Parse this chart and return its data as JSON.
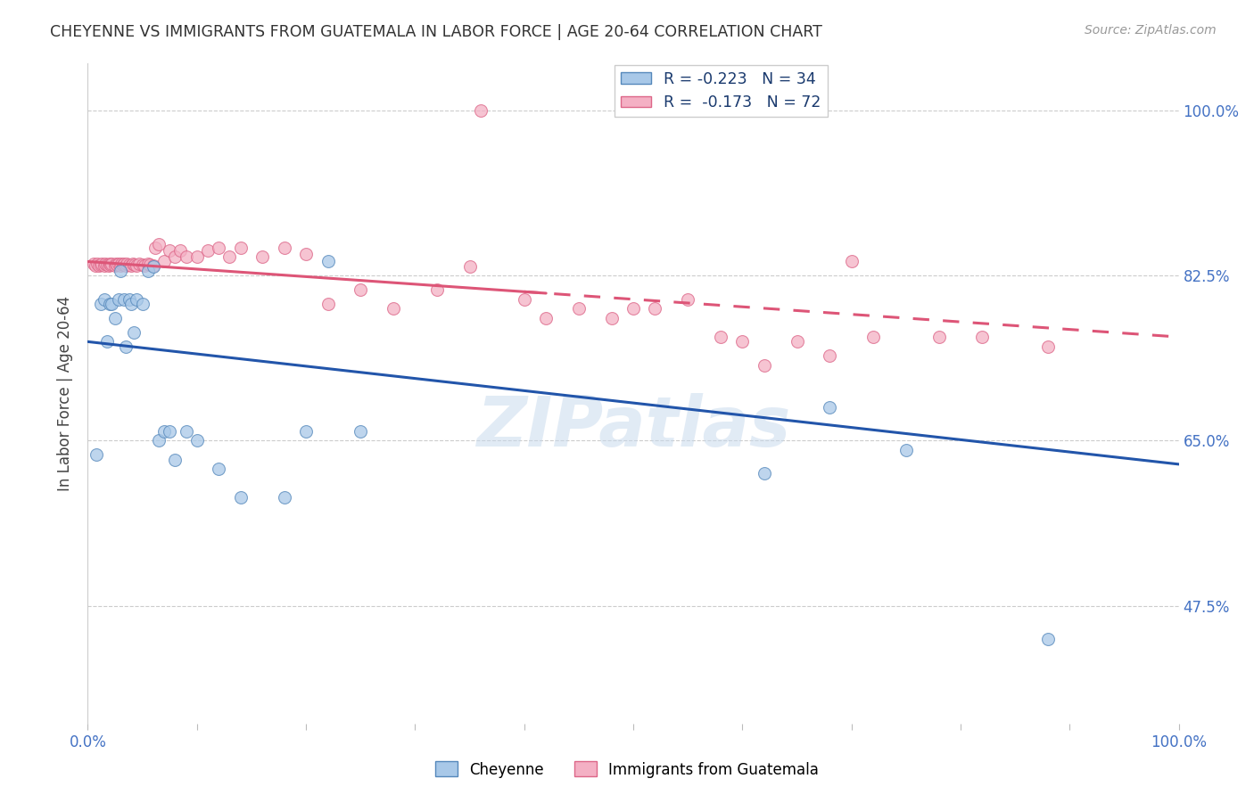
{
  "title": "CHEYENNE VS IMMIGRANTS FROM GUATEMALA IN LABOR FORCE | AGE 20-64 CORRELATION CHART",
  "source": "Source: ZipAtlas.com",
  "ylabel": "In Labor Force | Age 20-64",
  "xlim": [
    0.0,
    1.0
  ],
  "ylim": [
    0.35,
    1.05
  ],
  "color_blue": "#a8c8e8",
  "edgecolor_blue": "#5588bb",
  "color_pink": "#f4b0c4",
  "edgecolor_pink": "#dd6688",
  "line_color_blue": "#2255aa",
  "line_color_pink": "#dd5577",
  "watermark": "ZIPatlas",
  "cheyenne_x": [
    0.008,
    0.012,
    0.015,
    0.018,
    0.02,
    0.022,
    0.025,
    0.028,
    0.03,
    0.033,
    0.035,
    0.038,
    0.04,
    0.042,
    0.045,
    0.05,
    0.055,
    0.06,
    0.065,
    0.07,
    0.075,
    0.08,
    0.09,
    0.1,
    0.12,
    0.14,
    0.18,
    0.2,
    0.22,
    0.25,
    0.62,
    0.68,
    0.75,
    0.88
  ],
  "cheyenne_y": [
    0.635,
    0.795,
    0.8,
    0.755,
    0.795,
    0.795,
    0.78,
    0.8,
    0.83,
    0.8,
    0.75,
    0.8,
    0.795,
    0.765,
    0.8,
    0.795,
    0.83,
    0.835,
    0.65,
    0.66,
    0.66,
    0.63,
    0.66,
    0.65,
    0.62,
    0.59,
    0.59,
    0.66,
    0.84,
    0.66,
    0.615,
    0.685,
    0.64,
    0.44
  ],
  "cheyenne_line_x": [
    0.0,
    1.0
  ],
  "cheyenne_line_y": [
    0.755,
    0.625
  ],
  "guatemala_x": [
    0.005,
    0.007,
    0.009,
    0.01,
    0.012,
    0.013,
    0.015,
    0.016,
    0.018,
    0.019,
    0.02,
    0.021,
    0.022,
    0.025,
    0.026,
    0.027,
    0.028,
    0.03,
    0.031,
    0.032,
    0.033,
    0.035,
    0.036,
    0.038,
    0.04,
    0.041,
    0.043,
    0.045,
    0.047,
    0.05,
    0.052,
    0.055,
    0.057,
    0.06,
    0.062,
    0.065,
    0.07,
    0.075,
    0.08,
    0.085,
    0.09,
    0.1,
    0.11,
    0.12,
    0.13,
    0.14,
    0.16,
    0.18,
    0.2,
    0.22,
    0.25,
    0.28,
    0.32,
    0.35,
    0.4,
    0.45,
    0.5,
    0.55,
    0.6,
    0.65,
    0.7,
    0.36,
    0.42,
    0.48,
    0.52,
    0.58,
    0.62,
    0.68,
    0.72,
    0.78,
    0.82,
    0.88
  ],
  "guatemala_y": [
    0.838,
    0.836,
    0.838,
    0.836,
    0.837,
    0.838,
    0.836,
    0.838,
    0.837,
    0.836,
    0.838,
    0.837,
    0.838,
    0.836,
    0.838,
    0.837,
    0.838,
    0.836,
    0.838,
    0.837,
    0.838,
    0.836,
    0.838,
    0.837,
    0.836,
    0.838,
    0.837,
    0.836,
    0.838,
    0.837,
    0.836,
    0.838,
    0.837,
    0.836,
    0.855,
    0.858,
    0.84,
    0.852,
    0.845,
    0.852,
    0.845,
    0.845,
    0.852,
    0.855,
    0.845,
    0.855,
    0.845,
    0.855,
    0.848,
    0.795,
    0.81,
    0.79,
    0.81,
    0.835,
    0.8,
    0.79,
    0.79,
    0.8,
    0.755,
    0.755,
    0.84,
    1.0,
    0.78,
    0.78,
    0.79,
    0.76,
    0.73,
    0.74,
    0.76,
    0.76,
    0.76,
    0.75
  ],
  "guatemala_line_x": [
    0.0,
    1.0
  ],
  "guatemala_line_y": [
    0.84,
    0.76
  ]
}
